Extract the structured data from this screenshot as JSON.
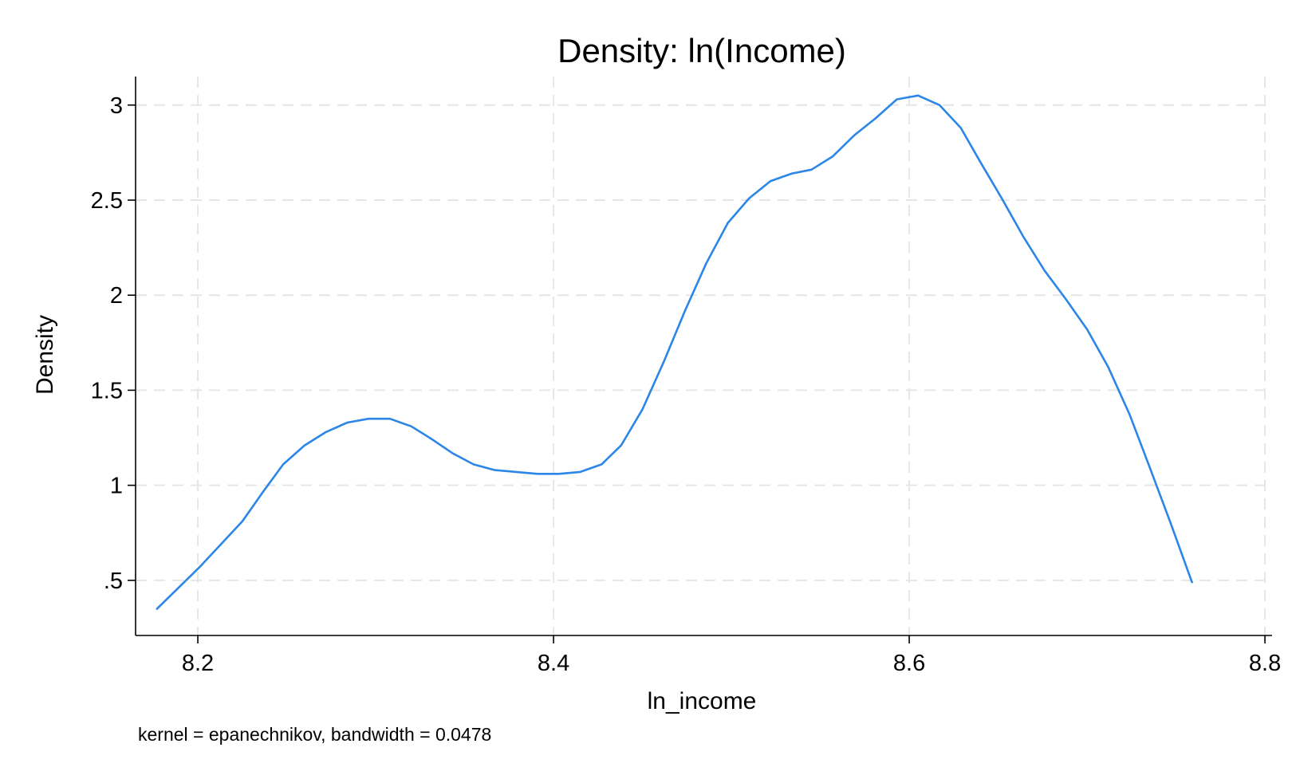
{
  "colors": {
    "line": "#2b86e8",
    "grid": "#e6e6e6",
    "axis": "#000000",
    "background": "#ffffff"
  },
  "chart_data": {
    "type": "line",
    "title": "Density: ln(Income)",
    "xlabel": "ln_income",
    "ylabel": "Density",
    "note": "kernel = epanechnikov, bandwidth = 0.0478",
    "xlim": [
      8.165,
      8.804
    ],
    "ylim": [
      0.21,
      3.15
    ],
    "xticks": [
      8.2,
      8.4,
      8.6,
      8.8
    ],
    "xtick_labels": [
      "8.2",
      "8.4",
      "8.6",
      "8.8"
    ],
    "yticks": [
      0.5,
      1,
      1.5,
      2,
      2.5,
      3
    ],
    "ytick_labels": [
      ".5",
      "1",
      "1.5",
      "2",
      "2.5",
      "3"
    ],
    "grid": true,
    "legend": "none",
    "series": [
      {
        "x": [
          8.177,
          8.189,
          8.201,
          8.213,
          8.225,
          8.237,
          8.248,
          8.26,
          8.272,
          8.284,
          8.296,
          8.308,
          8.32,
          8.332,
          8.343,
          8.355,
          8.367,
          8.379,
          8.391,
          8.403,
          8.415,
          8.427,
          8.438,
          8.45,
          8.462,
          8.474,
          8.486,
          8.498,
          8.51,
          8.522,
          8.534,
          8.545,
          8.557,
          8.569,
          8.581,
          8.593,
          8.605,
          8.617,
          8.629,
          8.64,
          8.652,
          8.664,
          8.676,
          8.688,
          8.7,
          8.712,
          8.724,
          8.735,
          8.747,
          8.759
        ],
        "y": [
          0.35,
          0.46,
          0.57,
          0.69,
          0.81,
          0.97,
          1.11,
          1.21,
          1.28,
          1.33,
          1.35,
          1.35,
          1.31,
          1.24,
          1.17,
          1.11,
          1.08,
          1.07,
          1.06,
          1.06,
          1.07,
          1.11,
          1.21,
          1.4,
          1.65,
          1.92,
          2.17,
          2.38,
          2.51,
          2.6,
          2.64,
          2.66,
          2.73,
          2.84,
          2.93,
          3.03,
          3.05,
          3.0,
          2.88,
          2.7,
          2.51,
          2.31,
          2.13,
          1.98,
          1.82,
          1.62,
          1.37,
          1.1,
          0.8,
          0.49
        ]
      }
    ]
  }
}
